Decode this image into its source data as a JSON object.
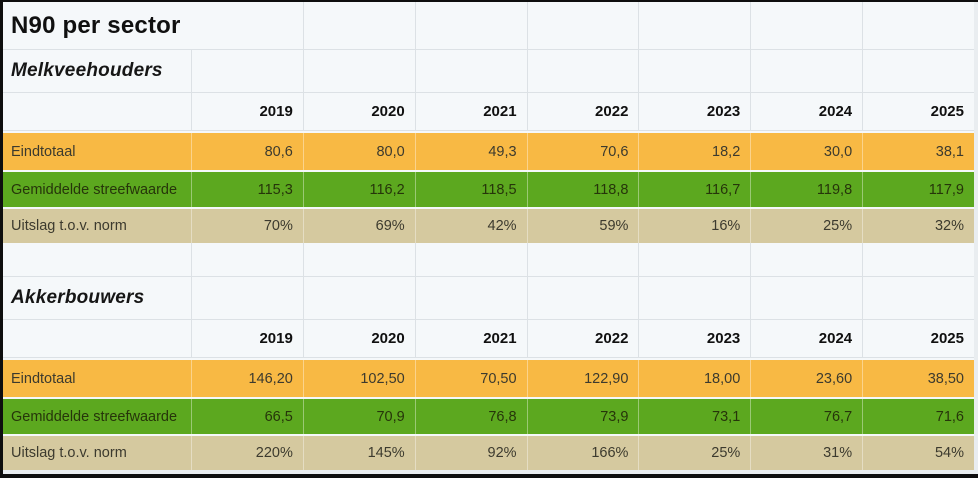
{
  "page": {
    "title": "N90 per sector"
  },
  "years": [
    "2019",
    "2020",
    "2021",
    "2022",
    "2023",
    "2024",
    "2025"
  ],
  "sections": [
    {
      "name": "Melkveehouders",
      "rows": [
        {
          "label": "Eindtotaal",
          "color_key": "orange",
          "values": [
            "80,6",
            "80,0",
            "49,3",
            "70,6",
            "18,2",
            "30,0",
            "38,1"
          ]
        },
        {
          "label": "Gemiddelde streefwaarde",
          "color_key": "green",
          "values": [
            "115,3",
            "116,2",
            "118,5",
            "118,8",
            "116,7",
            "119,8",
            "117,9"
          ]
        },
        {
          "label": "Uitslag t.o.v. norm",
          "color_key": "tan",
          "values": [
            "70%",
            "69%",
            "42%",
            "59%",
            "16%",
            "25%",
            "32%"
          ]
        }
      ]
    },
    {
      "name": "Akkerbouwers",
      "rows": [
        {
          "label": "Eindtotaal",
          "color_key": "orange",
          "values": [
            "146,20",
            "102,50",
            "70,50",
            "122,90",
            "18,00",
            "23,60",
            "38,50"
          ]
        },
        {
          "label": "Gemiddelde streefwaarde",
          "color_key": "green",
          "values": [
            "66,5",
            "70,9",
            "76,8",
            "73,9",
            "73,1",
            "76,7",
            "71,6"
          ]
        },
        {
          "label": "Uitslag t.o.v. norm",
          "color_key": "tan",
          "values": [
            "220%",
            "145%",
            "92%",
            "166%",
            "25%",
            "31%",
            "54%"
          ]
        }
      ]
    }
  ],
  "colors": {
    "orange_row": "#F8B944",
    "green_row": "#5CA81F",
    "tan_row": "#D5C99F",
    "sheet_background": "#F5F8FA",
    "grid_line": "#DCE1E5",
    "frame": "#0E0E0E"
  },
  "chart_data": [
    {
      "type": "table",
      "title": "N90 per sector — Melkveehouders",
      "columns": [
        "",
        "2019",
        "2020",
        "2021",
        "2022",
        "2023",
        "2024",
        "2025"
      ],
      "rows": [
        [
          "Eindtotaal",
          80.6,
          80.0,
          49.3,
          70.6,
          18.2,
          30.0,
          38.1
        ],
        [
          "Gemiddelde streefwaarde",
          115.3,
          116.2,
          118.5,
          118.8,
          116.7,
          119.8,
          117.9
        ],
        [
          "Uitslag t.o.v. norm",
          "70%",
          "69%",
          "42%",
          "59%",
          "16%",
          "25%",
          "32%"
        ]
      ]
    },
    {
      "type": "table",
      "title": "N90 per sector — Akkerbouwers",
      "columns": [
        "",
        "2019",
        "2020",
        "2021",
        "2022",
        "2023",
        "2024",
        "2025"
      ],
      "rows": [
        [
          "Eindtotaal",
          146.2,
          102.5,
          70.5,
          122.9,
          18.0,
          23.6,
          38.5
        ],
        [
          "Gemiddelde streefwaarde",
          66.5,
          70.9,
          76.8,
          73.9,
          73.1,
          76.7,
          71.6
        ],
        [
          "Uitslag t.o.v. norm",
          "220%",
          "145%",
          "92%",
          "166%",
          "25%",
          "31%",
          "54%"
        ]
      ]
    }
  ]
}
